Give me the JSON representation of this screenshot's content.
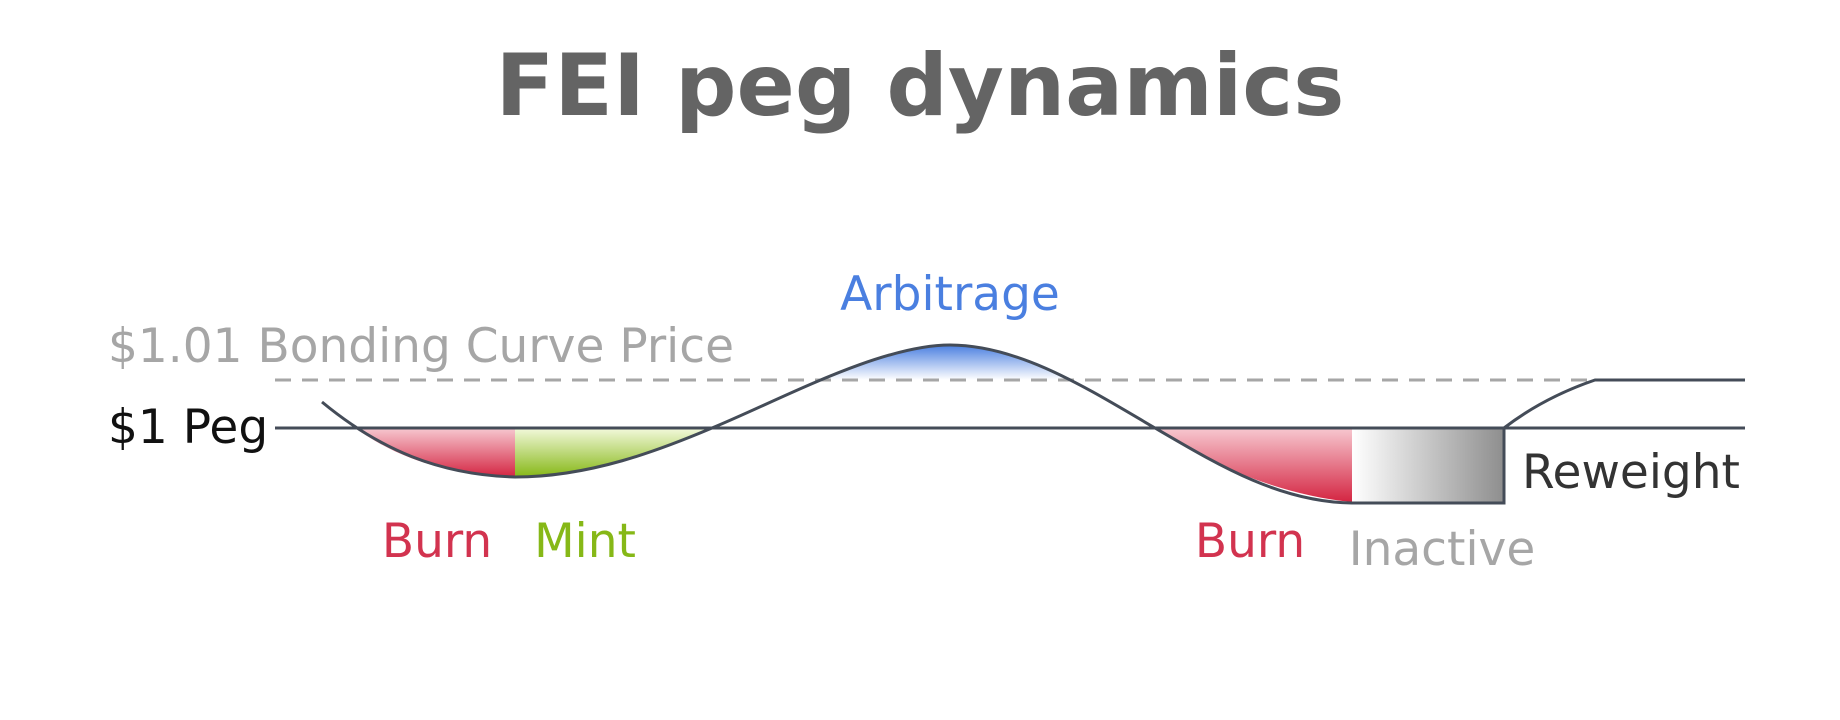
{
  "title": "FEI peg dynamics",
  "lines": {
    "peg_label": "$1 Peg",
    "bonding_curve_label": "$1.01 Bonding Curve Price"
  },
  "regions": {
    "arbitrage": "Arbitrage",
    "burn_1": "Burn",
    "mint": "Mint",
    "burn_2": "Burn",
    "inactive": "Inactive",
    "reweight": "Reweight"
  },
  "colors": {
    "title": "#646464",
    "curve": "#444c58",
    "dashed": "#a6a6a6",
    "peg_text": "#111111",
    "bonding_text": "#a6a6a6",
    "arbitrage": "#4a7fe0",
    "burn": "#d2334f",
    "mint": "#86b817",
    "inactive": "#a6a6a6",
    "reweight": "#333333"
  }
}
